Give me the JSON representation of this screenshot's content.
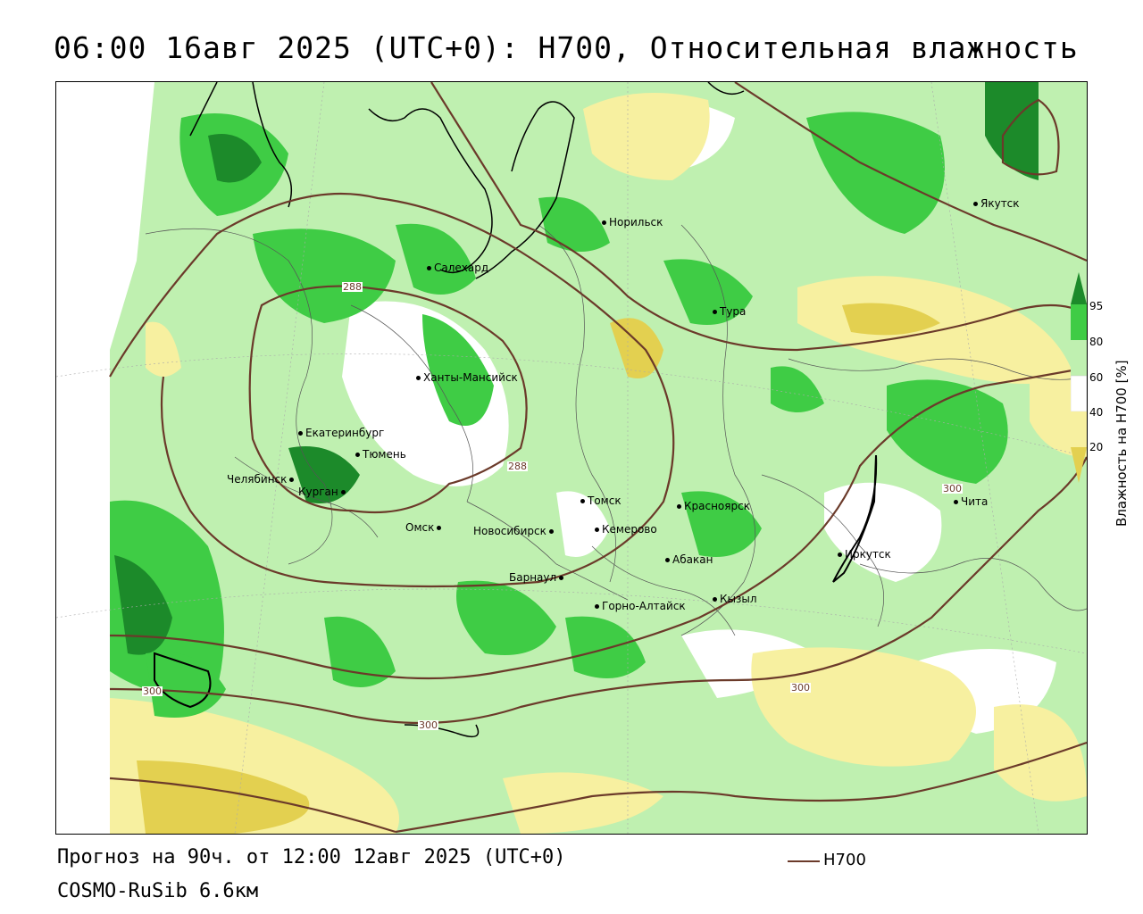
{
  "title": "06:00 16авг 2025 (UTC+0): H700, Относительная влажность",
  "forecast_line": "Прогноз на 90ч. от 12:00 12авг 2025 (UTC+0)",
  "model_line": "COSMO-RuSib 6.6км",
  "legend": {
    "line_label": "H700",
    "line_color": "#6b3a2a"
  },
  "colorbar": {
    "title": "Влажность на H700 [%]",
    "ticks": [
      "95",
      "80",
      "60",
      "40",
      "20"
    ],
    "colors": {
      "c95": "#1c8a2a",
      "c80": "#3fcc45",
      "c60": "#bff0b0",
      "c40": "#ffffff",
      "c20": "#f7f0a0",
      "c0": "#e3d050"
    }
  },
  "cities": [
    {
      "name": "Норильск"
    },
    {
      "name": "Якутск"
    },
    {
      "name": "Салехард"
    },
    {
      "name": "Тура"
    },
    {
      "name": "Ханты-Мансийск"
    },
    {
      "name": "Екатеринбург"
    },
    {
      "name": "Тюмень"
    },
    {
      "name": "Челябинск"
    },
    {
      "name": "Курган"
    },
    {
      "name": "Омск"
    },
    {
      "name": "Новосибирск"
    },
    {
      "name": "Томск"
    },
    {
      "name": "Кемерово"
    },
    {
      "name": "Красноярск"
    },
    {
      "name": "Абакан"
    },
    {
      "name": "Барнаул"
    },
    {
      "name": "Горно-Алтайск"
    },
    {
      "name": "Кызыл"
    },
    {
      "name": "Иркутск"
    },
    {
      "name": "Чита"
    }
  ],
  "contour_labels": [
    "288",
    "288",
    "300",
    "300",
    "300",
    "300"
  ]
}
